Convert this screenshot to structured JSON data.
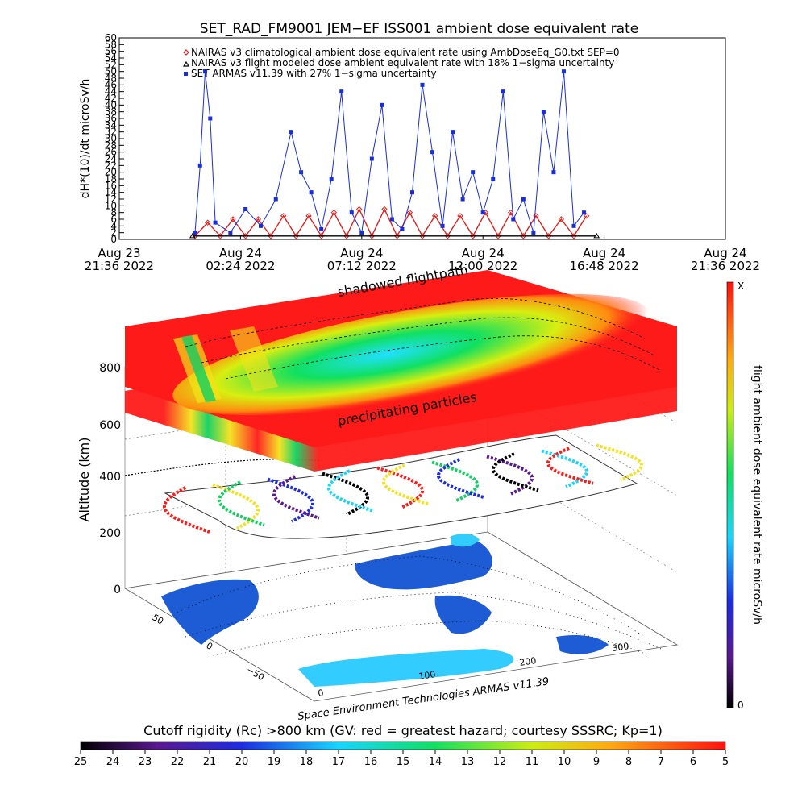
{
  "colors": {
    "nairas_clim": "#dd2222",
    "nairas_flight": "#000000",
    "armas": "#1a2ed8",
    "hazard_red": "#ff1a1a",
    "map_land": "#1e5cd6",
    "map_ice": "#33ccff"
  },
  "top_chart": {
    "title": "SET_RAD_FM9001  JEM−EF ISS001 ambient dose equivalent rate",
    "ylabel": "dH*(10)/dt microSv/h",
    "ylim": [
      0,
      60
    ],
    "legend": [
      {
        "marker": "diamond",
        "label": "NAIRAS v3 climatological ambient dose equivalent rate using AmbDoseEq_G0.txt SEP=0"
      },
      {
        "marker": "triangle",
        "label": "NAIRAS v3 flight modeled dose ambient equivalent rate with 18% 1−sigma uncertainty"
      },
      {
        "marker": "square",
        "label": "SET ARMAS v11.39 with 27% 1−sigma uncertainty"
      }
    ],
    "ytick_labels": [
      "0",
      "2",
      "4",
      "6",
      "8",
      "10",
      "12",
      "14",
      "16",
      "18",
      "20",
      "22",
      "24",
      "26",
      "28",
      "30",
      "32",
      "34",
      "36",
      "38",
      "40",
      "42",
      "44",
      "46",
      "48",
      "50",
      "52",
      "54",
      "56",
      "58",
      "60"
    ],
    "xticks": [
      {
        "top": "Aug 23",
        "bottom": "21:36 2022"
      },
      {
        "top": "Aug 24",
        "bottom": "02:24 2022"
      },
      {
        "top": "Aug 24",
        "bottom": "07:12 2022"
      },
      {
        "top": "Aug 24",
        "bottom": "12:00 2022"
      },
      {
        "top": "Aug 24",
        "bottom": "16:48 2022"
      },
      {
        "top": "Aug 24",
        "bottom": "21:36 2022"
      }
    ]
  },
  "chart_data": [
    {
      "type": "line",
      "title": "SET_RAD_FM9001  JEM−EF ISS001 ambient dose equivalent rate",
      "ylabel": "dH*(10)/dt microSv/h",
      "xlabel": "",
      "x_unit": "hours since Aug 23 21:36 2022",
      "xlim": [
        0,
        24
      ],
      "ylim": [
        0,
        60
      ],
      "grid": false,
      "legend_position": "top",
      "series": [
        {
          "name": "NAIRAS v3 climatological ambient dose equivalent rate using AmbDoseEq_G0.txt SEP=0",
          "x": [
            3.0,
            3.5,
            4.0,
            4.5,
            5.0,
            5.5,
            6.0,
            6.5,
            7.0,
            7.5,
            8.0,
            8.5,
            9.0,
            9.5,
            10.0,
            10.5,
            11.0,
            11.5,
            12.0,
            12.5,
            13.0,
            13.5,
            14.0,
            14.5,
            15.0,
            15.5,
            16.0,
            16.5,
            17.0,
            17.5,
            18.0,
            18.5
          ],
          "values": [
            1,
            5,
            1,
            6,
            1,
            6,
            1,
            7,
            1,
            7,
            1,
            8,
            1,
            9,
            1,
            9,
            1,
            8,
            1,
            7,
            1,
            7,
            1,
            8,
            1,
            8,
            1,
            7,
            1,
            6,
            1,
            7
          ]
        },
        {
          "name": "NAIRAS v3 flight modeled dose ambient equivalent rate with 18% 1−sigma uncertainty",
          "x": [
            2.9,
            18.9
          ],
          "values": [
            1,
            1
          ]
        },
        {
          "name": "SET ARMAS v11.39 with 27% 1−sigma uncertainty",
          "x": [
            3.0,
            3.2,
            3.4,
            3.6,
            3.8,
            4.4,
            5.0,
            5.6,
            6.2,
            6.8,
            7.2,
            7.6,
            8.0,
            8.4,
            8.8,
            9.2,
            9.6,
            10.0,
            10.4,
            10.8,
            11.2,
            11.6,
            12.0,
            12.4,
            12.8,
            13.2,
            13.6,
            14.0,
            14.4,
            14.8,
            15.2,
            15.6,
            16.0,
            16.4,
            16.8,
            17.2,
            17.6,
            18.0,
            18.4
          ],
          "values": [
            2,
            22,
            50,
            36,
            5,
            2,
            9,
            4,
            12,
            32,
            20,
            14,
            3,
            18,
            44,
            8,
            2,
            24,
            40,
            6,
            3,
            14,
            46,
            26,
            4,
            32,
            12,
            20,
            8,
            18,
            44,
            6,
            12,
            2,
            38,
            20,
            50,
            4,
            8
          ]
        }
      ]
    },
    {
      "type": "heatmap",
      "title": "",
      "zlabel": "Altitude (km)",
      "z_ticks": [
        "0",
        "200",
        "400",
        "600",
        "800"
      ],
      "layer_labels": [
        "shadowed flightpath",
        "precipitating particles"
      ],
      "credit": "Space Environment Technologies ARMAS v11.39",
      "lat_ticks": [
        "50",
        "0",
        "−50"
      ],
      "lon_ticks": [
        "0",
        "100",
        "200",
        "300"
      ],
      "colorbar_right": {
        "label": "flight ambient dose equivalent rate microSv/h",
        "max_label": "X",
        "min_label": "0"
      },
      "colorbar_bottom": {
        "label": "Cutoff rigidity (Rc) >800 km (GV: red = greatest hazard; courtesy SSSRC; Kp=1)",
        "ticks": [
          "25",
          "24",
          "23",
          "22",
          "21",
          "20",
          "19",
          "18",
          "17",
          "16",
          "15",
          "14",
          "13",
          "12",
          "11",
          "10",
          "9",
          "8",
          "7",
          "6",
          "5"
        ]
      }
    }
  ]
}
